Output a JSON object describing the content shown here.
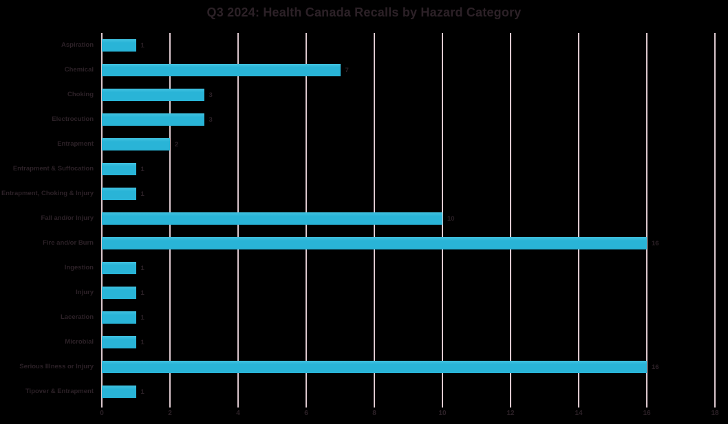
{
  "chart_data": {
    "type": "bar",
    "orientation": "horizontal",
    "title": "Q3 2024: Health Canada Recalls by Hazard Category",
    "categories": [
      "Aspiration",
      "Chemical",
      "Choking",
      "Electrocution",
      "Entrapment",
      "Entrapment & Suffocation",
      "Entrapment, Choking & Injury",
      "Fall and/or Injury",
      "Fire and/or Burn",
      "Ingestion",
      "Injury",
      "Laceration",
      "Microbial",
      "Serious Illness or Injury",
      "Tipover & Entrapment"
    ],
    "values": [
      1,
      7,
      3,
      3,
      2,
      1,
      1,
      10,
      16,
      1,
      1,
      1,
      1,
      16,
      1
    ],
    "data_labels": [
      1,
      7,
      3,
      3,
      2,
      1,
      1,
      10,
      16,
      1,
      1,
      1,
      1,
      16,
      1
    ],
    "xlabel": "",
    "ylabel": "",
    "xlim": [
      0,
      18
    ],
    "x_ticks": [
      0,
      2,
      4,
      6,
      8,
      10,
      12,
      14,
      16,
      18
    ],
    "grid": "vertical",
    "legend": "none"
  },
  "colors": {
    "background": "#000000",
    "bar": "#29b4d7",
    "bar_top_highlight": "#41c1e0",
    "gridline": "#ddc9cf",
    "text": "#2c2127"
  }
}
